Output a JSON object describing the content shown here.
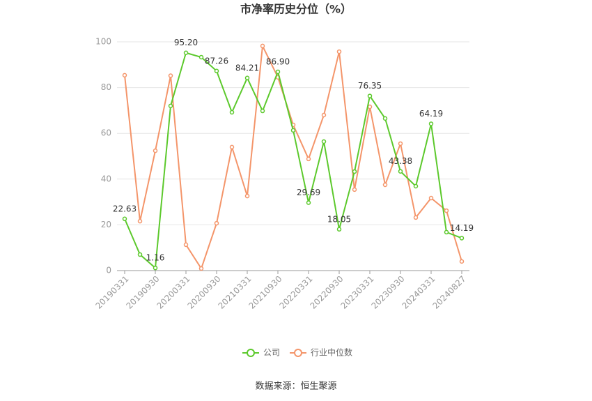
{
  "chart_data": {
    "type": "line",
    "title": "市净率历史分位（%）",
    "source": "数据来源：恒生聚源",
    "categories": [
      "20190331",
      null,
      "20190930",
      null,
      "20200331",
      null,
      "20200930",
      null,
      "20210331",
      null,
      "20210930",
      null,
      "20220331",
      null,
      "20220930",
      null,
      "20230331",
      null,
      "20230930",
      null,
      "20240331",
      null,
      "20240827"
    ],
    "series": [
      {
        "name": "公司",
        "color": "#5cc92c",
        "values": [
          22.63,
          7.0,
          1.16,
          72.0,
          95.2,
          93.3,
          87.26,
          69.2,
          84.21,
          69.8,
          86.9,
          61.3,
          29.69,
          56.4,
          18.05,
          43.3,
          76.35,
          66.5,
          43.38,
          36.9,
          64.19,
          16.8,
          14.19
        ],
        "value_labels": [
          "22.63",
          null,
          "1.16",
          null,
          "95.20",
          null,
          "87.26",
          null,
          "84.21",
          null,
          "86.90",
          null,
          "29.69",
          null,
          "18.05",
          null,
          "76.35",
          null,
          "43.38",
          null,
          "64.19",
          null,
          "14.19"
        ]
      },
      {
        "name": "行业中位数",
        "color": "#f4956a",
        "values": [
          85.4,
          21.6,
          52.4,
          85.2,
          11.3,
          0.9,
          20.7,
          54.0,
          32.6,
          98.2,
          84.5,
          63.7,
          48.8,
          68.0,
          95.7,
          35.4,
          71.6,
          37.5,
          55.5,
          23.2,
          31.7,
          26.2,
          4.0
        ]
      }
    ],
    "ylim": [
      0,
      100
    ],
    "yticks": [
      0,
      20,
      40,
      60,
      80,
      100
    ],
    "grid": true
  }
}
